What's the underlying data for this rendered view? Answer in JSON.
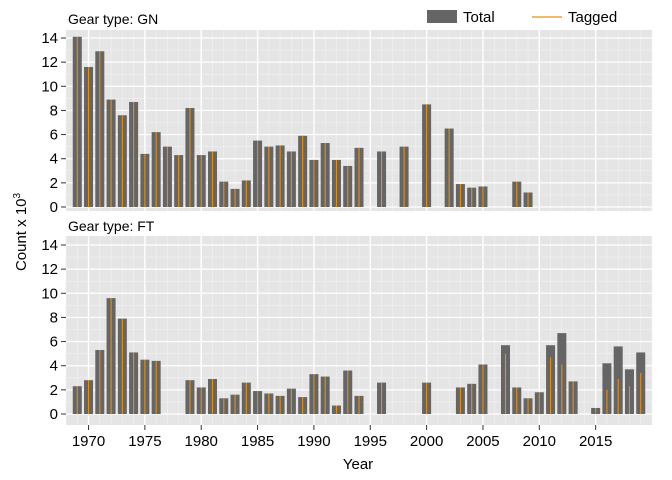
{
  "chart_data": {
    "type": "bar",
    "xlabel": "Year",
    "ylabel": "Count x 10",
    "ylabel_superscript": "3",
    "ylim": [
      0,
      15
    ],
    "yticks": [
      0,
      2,
      4,
      6,
      8,
      10,
      12,
      14
    ],
    "xlim": [
      1968,
      2020
    ],
    "xticks": [
      1970,
      1975,
      1980,
      1985,
      1990,
      1995,
      2000,
      2005,
      2010,
      2015
    ],
    "legend": {
      "position": "top-right",
      "entries": [
        "Total",
        "Tagged"
      ]
    },
    "colors": {
      "total": "#656565",
      "tagged": "#e8900e",
      "panel_bg": "#e5e5e5",
      "grid": "#ffffff"
    },
    "panels": [
      {
        "title": "Gear type: GN",
        "series": [
          {
            "name": "Total",
            "points": [
              [
                1969,
                14.1
              ],
              [
                1970,
                11.6
              ],
              [
                1971,
                12.9
              ],
              [
                1972,
                8.9
              ],
              [
                1973,
                7.6
              ],
              [
                1974,
                8.7
              ],
              [
                1975,
                4.4
              ],
              [
                1976,
                6.2
              ],
              [
                1977,
                5.0
              ],
              [
                1978,
                4.3
              ],
              [
                1979,
                8.2
              ],
              [
                1980,
                4.3
              ],
              [
                1981,
                4.6
              ],
              [
                1982,
                2.1
              ],
              [
                1983,
                1.5
              ],
              [
                1984,
                2.2
              ],
              [
                1985,
                5.5
              ],
              [
                1986,
                5.0
              ],
              [
                1987,
                5.1
              ],
              [
                1988,
                4.6
              ],
              [
                1989,
                5.9
              ],
              [
                1990,
                3.9
              ],
              [
                1991,
                5.3
              ],
              [
                1992,
                3.9
              ],
              [
                1993,
                3.4
              ],
              [
                1994,
                4.9
              ],
              [
                1996,
                4.6
              ],
              [
                1998,
                5.0
              ],
              [
                2000,
                8.5
              ],
              [
                2002,
                6.5
              ],
              [
                2003,
                1.9
              ],
              [
                2004,
                1.6
              ],
              [
                2005,
                1.7
              ],
              [
                2008,
                2.1
              ],
              [
                2009,
                1.2
              ]
            ]
          },
          {
            "name": "Tagged",
            "points": [
              [
                1969,
                14.1
              ],
              [
                1970,
                11.6
              ],
              [
                1971,
                12.9
              ],
              [
                1972,
                8.9
              ],
              [
                1973,
                7.6
              ],
              [
                1974,
                8.7
              ],
              [
                1975,
                4.4
              ],
              [
                1976,
                6.2
              ],
              [
                1977,
                5.0
              ],
              [
                1978,
                4.3
              ],
              [
                1979,
                8.2
              ],
              [
                1980,
                4.3
              ],
              [
                1981,
                4.6
              ],
              [
                1982,
                2.1
              ],
              [
                1983,
                1.5
              ],
              [
                1984,
                2.2
              ],
              [
                1985,
                5.5
              ],
              [
                1986,
                5.0
              ],
              [
                1987,
                5.1
              ],
              [
                1988,
                4.6
              ],
              [
                1989,
                5.9
              ],
              [
                1990,
                3.9
              ],
              [
                1991,
                5.3
              ],
              [
                1992,
                3.9
              ],
              [
                1993,
                3.4
              ],
              [
                1994,
                4.9
              ],
              [
                1996,
                4.6
              ],
              [
                1998,
                5.0
              ],
              [
                2000,
                8.5
              ],
              [
                2002,
                6.5
              ],
              [
                2003,
                1.9
              ],
              [
                2004,
                1.6
              ],
              [
                2005,
                1.7
              ],
              [
                2008,
                2.1
              ],
              [
                2009,
                1.2
              ]
            ]
          }
        ]
      },
      {
        "title": "Gear type: FT",
        "series": [
          {
            "name": "Total",
            "points": [
              [
                1969,
                2.3
              ],
              [
                1970,
                2.8
              ],
              [
                1971,
                5.3
              ],
              [
                1972,
                9.6
              ],
              [
                1973,
                7.9
              ],
              [
                1974,
                5.1
              ],
              [
                1975,
                4.5
              ],
              [
                1976,
                4.4
              ],
              [
                1979,
                2.8
              ],
              [
                1980,
                2.2
              ],
              [
                1981,
                2.9
              ],
              [
                1982,
                1.3
              ],
              [
                1983,
                1.6
              ],
              [
                1984,
                2.6
              ],
              [
                1985,
                1.9
              ],
              [
                1986,
                1.7
              ],
              [
                1987,
                1.5
              ],
              [
                1988,
                2.1
              ],
              [
                1989,
                1.4
              ],
              [
                1990,
                3.3
              ],
              [
                1991,
                3.1
              ],
              [
                1992,
                0.7
              ],
              [
                1993,
                3.6
              ],
              [
                1994,
                1.5
              ],
              [
                1996,
                2.6
              ],
              [
                2000,
                2.6
              ],
              [
                2003,
                2.2
              ],
              [
                2004,
                2.5
              ],
              [
                2005,
                4.1
              ],
              [
                2007,
                5.7
              ],
              [
                2008,
                2.2
              ],
              [
                2009,
                1.3
              ],
              [
                2010,
                1.8
              ],
              [
                2011,
                5.7
              ],
              [
                2012,
                6.7
              ],
              [
                2013,
                2.7
              ],
              [
                2015,
                0.5
              ],
              [
                2016,
                4.2
              ],
              [
                2017,
                5.6
              ],
              [
                2018,
                3.7
              ],
              [
                2019,
                5.1
              ]
            ]
          },
          {
            "name": "Tagged",
            "points": [
              [
                1969,
                2.3
              ],
              [
                1970,
                2.8
              ],
              [
                1971,
                5.3
              ],
              [
                1972,
                9.6
              ],
              [
                1973,
                7.9
              ],
              [
                1974,
                5.1
              ],
              [
                1975,
                4.5
              ],
              [
                1976,
                4.4
              ],
              [
                1979,
                2.8
              ],
              [
                1980,
                2.2
              ],
              [
                1981,
                2.9
              ],
              [
                1982,
                1.3
              ],
              [
                1983,
                1.6
              ],
              [
                1984,
                2.6
              ],
              [
                1985,
                1.9
              ],
              [
                1986,
                1.7
              ],
              [
                1987,
                1.5
              ],
              [
                1988,
                2.1
              ],
              [
                1989,
                1.4
              ],
              [
                1990,
                3.3
              ],
              [
                1991,
                3.1
              ],
              [
                1992,
                0.7
              ],
              [
                1993,
                3.6
              ],
              [
                1994,
                1.5
              ],
              [
                1996,
                2.6
              ],
              [
                2000,
                2.6
              ],
              [
                2003,
                2.2
              ],
              [
                2004,
                2.5
              ],
              [
                2005,
                4.1
              ],
              [
                2007,
                5.0
              ],
              [
                2008,
                2.2
              ],
              [
                2009,
                1.3
              ],
              [
                2010,
                1.8
              ],
              [
                2011,
                4.7
              ],
              [
                2012,
                4.1
              ],
              [
                2013,
                2.7
              ],
              [
                2015,
                0.5
              ],
              [
                2016,
                2.0
              ],
              [
                2017,
                2.9
              ],
              [
                2018,
                2.3
              ],
              [
                2019,
                3.4
              ]
            ]
          }
        ]
      }
    ]
  }
}
